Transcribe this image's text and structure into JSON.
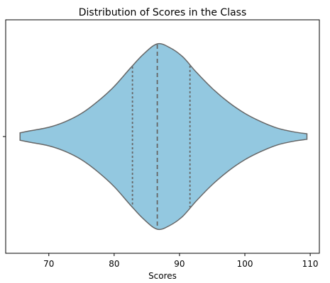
{
  "chart_data": {
    "type": "violin",
    "title": "Distribution of Scores in the Class",
    "xlabel": "Scores",
    "ylabel": "",
    "xlim": [
      63.4,
      111.4
    ],
    "xticks": [
      70,
      80,
      90,
      100,
      110
    ],
    "fill_color": "#93c8e0",
    "edge_color": "#666666",
    "grid": false,
    "range": [
      65.6,
      109.5
    ],
    "quartiles": {
      "q1": 82.8,
      "median": 86.6,
      "q3": 91.6
    },
    "density_profile": [
      [
        65.6,
        0.04
      ],
      [
        67,
        0.06
      ],
      [
        70,
        0.1
      ],
      [
        72.5,
        0.16
      ],
      [
        75,
        0.25
      ],
      [
        77.5,
        0.38
      ],
      [
        80,
        0.54
      ],
      [
        82.5,
        0.74
      ],
      [
        84.5,
        0.89
      ],
      [
        86.6,
        1.0
      ],
      [
        88.5,
        0.96
      ],
      [
        90.5,
        0.86
      ],
      [
        92.5,
        0.7
      ],
      [
        95,
        0.52
      ],
      [
        97.5,
        0.37
      ],
      [
        100,
        0.25
      ],
      [
        102.5,
        0.16
      ],
      [
        105,
        0.09
      ],
      [
        107.5,
        0.05
      ],
      [
        109.5,
        0.03
      ]
    ]
  }
}
